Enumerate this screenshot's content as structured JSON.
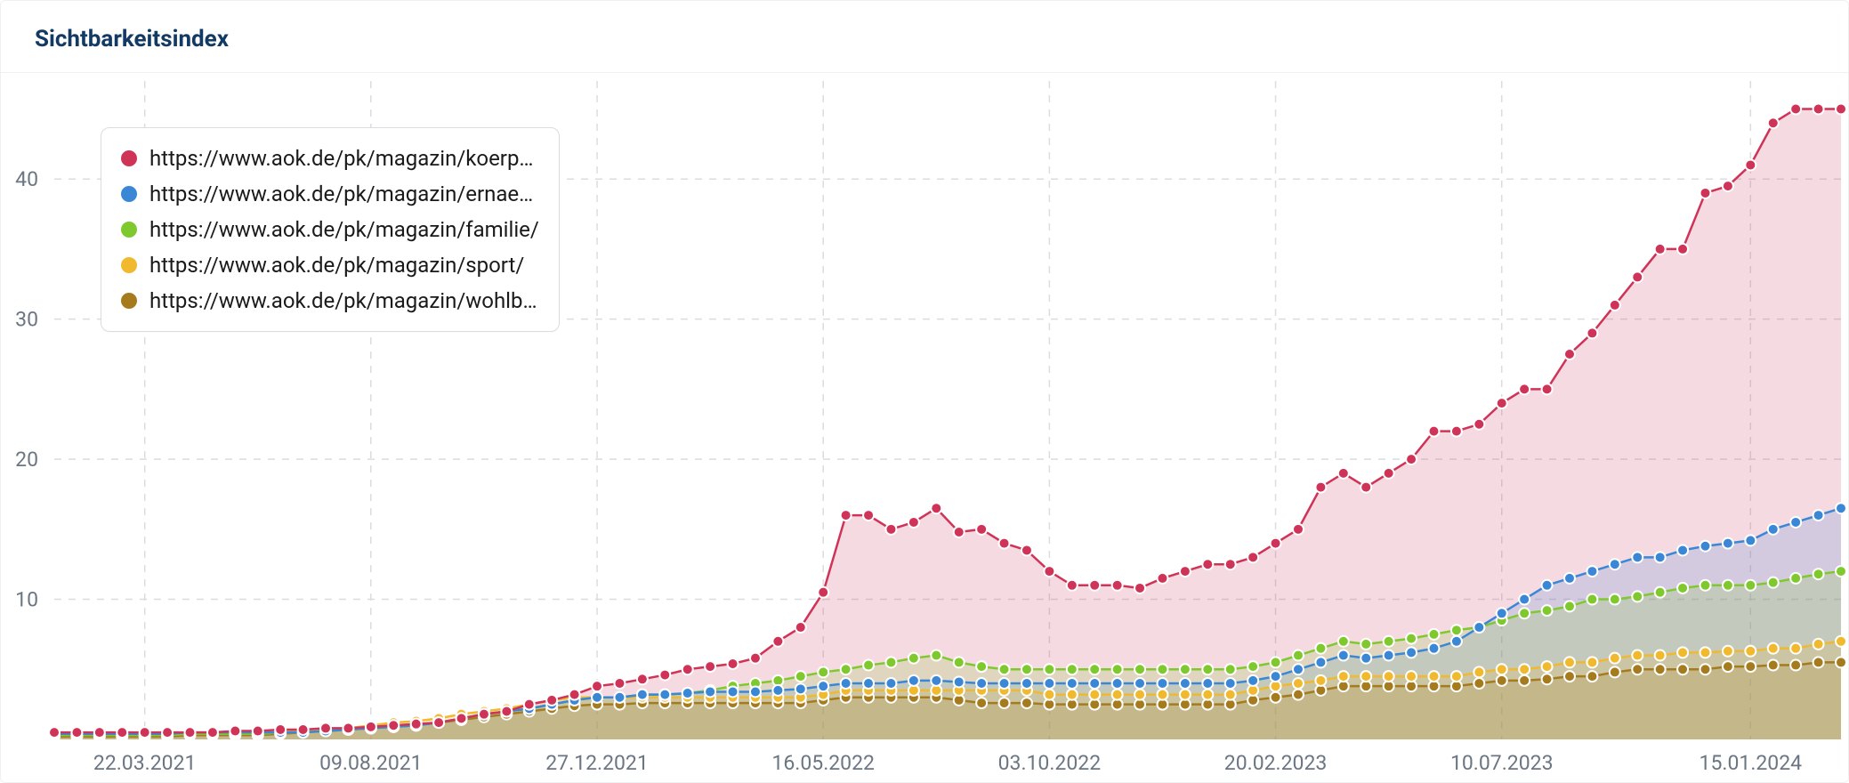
{
  "title": "Sichtbarkeitsindex",
  "chart": {
    "type": "area-line",
    "background_color": "#ffffff",
    "grid_color": "#d9dde1",
    "grid_dash": "8 8",
    "axis_text_color": "#6b7682",
    "axis_fontsize": 23,
    "title_color": "#123a63",
    "title_fontsize": 26,
    "marker_radius": 6,
    "marker_stroke": "#ffffff",
    "marker_stroke_width": 2,
    "line_width": 2.5,
    "fill_opacity": 0.18,
    "x_index_range": [
      0,
      79
    ],
    "y_range": [
      0,
      47
    ],
    "y_ticks": [
      10,
      20,
      30,
      40
    ],
    "x_ticks": [
      {
        "idx": 4,
        "label": "22.03.2021"
      },
      {
        "idx": 14,
        "label": "09.08.2021"
      },
      {
        "idx": 24,
        "label": "27.12.2021"
      },
      {
        "idx": 34,
        "label": "16.05.2022"
      },
      {
        "idx": 44,
        "label": "03.10.2022"
      },
      {
        "idx": 54,
        "label": "20.02.2023"
      },
      {
        "idx": 64,
        "label": "10.07.2023"
      },
      {
        "idx": 75,
        "label": "15.01.2024"
      }
    ],
    "legend": {
      "border_color": "#d9dde1",
      "background": "#ffffff",
      "fontsize": 24,
      "text_color": "#1a1a1a"
    },
    "series": [
      {
        "id": "koerp",
        "label": "https://www.aok.de/pk/magazin/koerp…",
        "color": "#cf3357",
        "values": [
          0.5,
          0.5,
          0.5,
          0.5,
          0.5,
          0.5,
          0.5,
          0.5,
          0.6,
          0.6,
          0.7,
          0.7,
          0.8,
          0.8,
          0.9,
          1.0,
          1.1,
          1.2,
          1.5,
          1.8,
          2.0,
          2.5,
          2.8,
          3.2,
          3.8,
          4.0,
          4.3,
          4.6,
          5.0,
          5.2,
          5.4,
          5.8,
          7.0,
          8.0,
          10.5,
          16.0,
          16.0,
          15.0,
          15.5,
          16.5,
          14.8,
          15.0,
          14.0,
          13.5,
          12.0,
          11.0,
          11.0,
          11.0,
          10.8,
          11.5,
          12.0,
          12.5,
          12.5,
          13.0,
          14.0,
          15.0,
          18.0,
          19.0,
          18.0,
          19.0,
          20.0,
          22.0,
          22.0,
          22.5,
          24.0,
          25.0,
          25.0,
          27.5,
          29.0,
          31.0,
          33.0,
          35.0,
          35.0,
          39.0,
          39.5,
          41.0,
          44.0,
          45.0,
          45.0,
          45.0
        ]
      },
      {
        "id": "ernae",
        "label": "https://www.aok.de/pk/magazin/ernae…",
        "color": "#3a87d6",
        "values": [
          0.4,
          0.4,
          0.4,
          0.4,
          0.4,
          0.4,
          0.5,
          0.5,
          0.5,
          0.5,
          0.5,
          0.5,
          0.6,
          0.7,
          0.8,
          0.9,
          1.0,
          1.2,
          1.5,
          1.8,
          2.0,
          2.2,
          2.5,
          2.8,
          3.0,
          3.0,
          3.2,
          3.2,
          3.3,
          3.4,
          3.4,
          3.4,
          3.5,
          3.6,
          3.8,
          4.0,
          4.0,
          4.0,
          4.2,
          4.2,
          4.1,
          4.0,
          4.0,
          4.0,
          4.0,
          4.0,
          4.0,
          4.0,
          4.0,
          4.0,
          4.0,
          4.0,
          4.0,
          4.2,
          4.5,
          5.0,
          5.5,
          6.0,
          5.8,
          6.0,
          6.2,
          6.5,
          7.0,
          8.0,
          9.0,
          10.0,
          11.0,
          11.5,
          12.0,
          12.5,
          13.0,
          13.0,
          13.5,
          13.8,
          14.0,
          14.2,
          15.0,
          15.5,
          16.0,
          16.5
        ]
      },
      {
        "id": "familie",
        "label": "https://www.aok.de/pk/magazin/familie/",
        "color": "#7fc92e",
        "values": [
          0.3,
          0.3,
          0.3,
          0.3,
          0.3,
          0.3,
          0.4,
          0.4,
          0.4,
          0.4,
          0.5,
          0.5,
          0.6,
          0.7,
          0.8,
          0.9,
          1.0,
          1.2,
          1.5,
          1.8,
          2.0,
          2.2,
          2.5,
          2.8,
          3.0,
          3.0,
          3.2,
          3.2,
          3.3,
          3.5,
          3.8,
          4.0,
          4.2,
          4.5,
          4.8,
          5.0,
          5.3,
          5.5,
          5.8,
          6.0,
          5.5,
          5.2,
          5.0,
          5.0,
          5.0,
          5.0,
          5.0,
          5.0,
          5.0,
          5.0,
          5.0,
          5.0,
          5.0,
          5.2,
          5.5,
          6.0,
          6.5,
          7.0,
          6.8,
          7.0,
          7.2,
          7.5,
          7.8,
          8.0,
          8.5,
          9.0,
          9.2,
          9.5,
          10.0,
          10.0,
          10.2,
          10.5,
          10.8,
          11.0,
          11.0,
          11.0,
          11.2,
          11.5,
          11.8,
          12.0
        ]
      },
      {
        "id": "sport",
        "label": "https://www.aok.de/pk/magazin/sport/",
        "color": "#f0b92e",
        "values": [
          0.3,
          0.3,
          0.3,
          0.3,
          0.3,
          0.3,
          0.4,
          0.4,
          0.4,
          0.4,
          0.5,
          0.6,
          0.7,
          0.8,
          1.0,
          1.2,
          1.3,
          1.5,
          1.8,
          2.0,
          2.2,
          2.5,
          2.8,
          3.0,
          3.0,
          3.0,
          3.0,
          3.0,
          3.0,
          3.0,
          3.0,
          3.0,
          3.0,
          3.0,
          3.2,
          3.5,
          3.5,
          3.5,
          3.5,
          3.5,
          3.5,
          3.5,
          3.5,
          3.5,
          3.2,
          3.2,
          3.2,
          3.2,
          3.2,
          3.2,
          3.2,
          3.2,
          3.2,
          3.5,
          3.8,
          4.0,
          4.2,
          4.5,
          4.5,
          4.5,
          4.5,
          4.5,
          4.5,
          4.8,
          5.0,
          5.0,
          5.2,
          5.5,
          5.5,
          5.8,
          6.0,
          6.0,
          6.2,
          6.2,
          6.3,
          6.3,
          6.5,
          6.5,
          6.8,
          7.0
        ]
      },
      {
        "id": "wohlb",
        "label": "https://www.aok.de/pk/magazin/wohlb…",
        "color": "#a57b1e",
        "values": [
          0.2,
          0.2,
          0.2,
          0.2,
          0.2,
          0.2,
          0.3,
          0.3,
          0.3,
          0.3,
          0.4,
          0.5,
          0.6,
          0.7,
          0.8,
          0.9,
          1.0,
          1.2,
          1.4,
          1.6,
          1.8,
          2.0,
          2.2,
          2.4,
          2.5,
          2.5,
          2.6,
          2.6,
          2.6,
          2.6,
          2.6,
          2.6,
          2.6,
          2.6,
          2.8,
          3.0,
          3.0,
          3.0,
          3.0,
          3.0,
          2.8,
          2.6,
          2.6,
          2.6,
          2.5,
          2.5,
          2.5,
          2.5,
          2.5,
          2.5,
          2.5,
          2.5,
          2.5,
          2.8,
          3.0,
          3.2,
          3.5,
          3.8,
          3.8,
          3.8,
          3.8,
          3.8,
          3.8,
          4.0,
          4.2,
          4.2,
          4.3,
          4.5,
          4.5,
          4.8,
          5.0,
          5.0,
          5.0,
          5.0,
          5.2,
          5.2,
          5.3,
          5.3,
          5.5,
          5.5
        ]
      }
    ]
  }
}
